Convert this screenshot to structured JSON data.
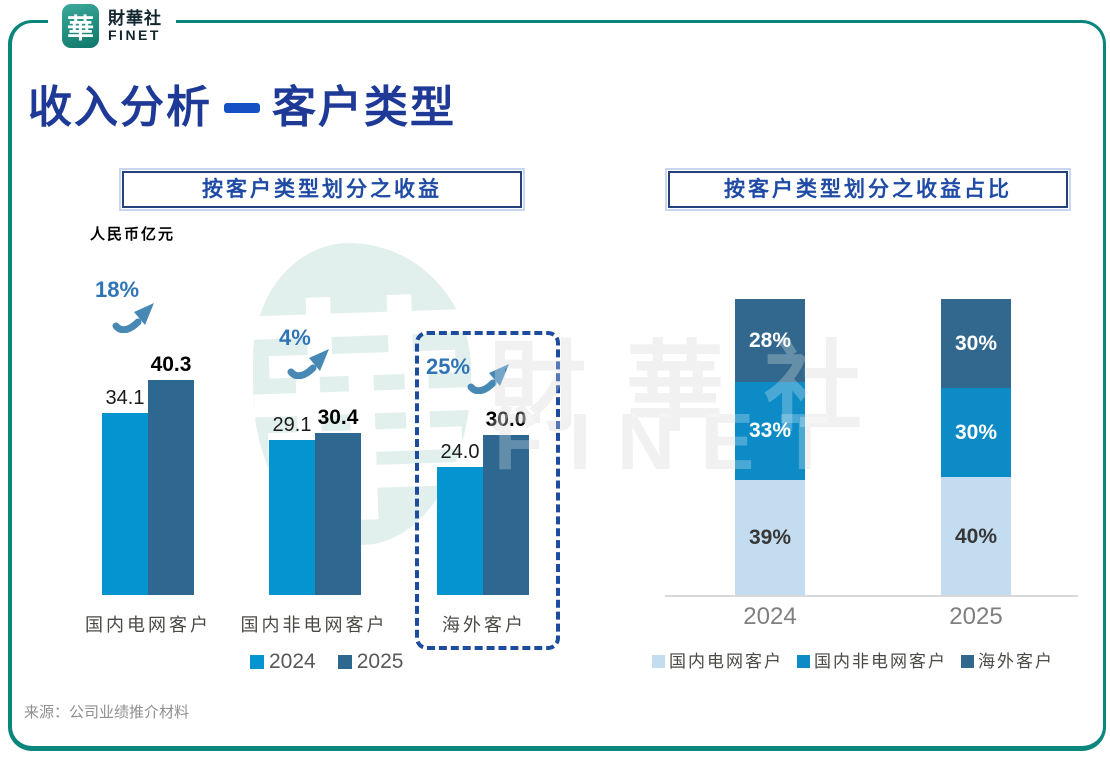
{
  "header": {
    "logo": {
      "seal_glyph": "華",
      "brand_cn": "財華社",
      "brand_en": "FINET"
    },
    "title_main": "收入分析",
    "title_sub": "客户类型"
  },
  "watermark": {
    "seal_glyph": "華",
    "brand_cn": "財華社",
    "brand_en": "FINET"
  },
  "footer": {
    "source": "来源：公司业绩推介材料"
  },
  "accent_colors": {
    "frame_teal": "#0B867D",
    "title_navy": "#1E3A96",
    "dash_blue": "#1550C4",
    "growth_blue": "#2E75B6",
    "box_border_navy": "#24417C",
    "highlight_dashed_blue": "#1D4B9E"
  },
  "chart_data": [
    {
      "type": "bar",
      "title": "按客户类型划分之收益",
      "unit_label": "人民币亿元",
      "categories": [
        "国内电网客户",
        "国内非电网客户",
        "海外客户"
      ],
      "series": [
        {
          "name": "2024",
          "color": "#0495D1",
          "values": [
            34.1,
            29.1,
            24.0
          ]
        },
        {
          "name": "2025",
          "color": "#2E6890",
          "values": [
            40.3,
            30.4,
            30.0
          ]
        }
      ],
      "growth_labels": [
        "18%",
        "4%",
        "25%"
      ],
      "highlighted_category": "海外客户",
      "ylim": [
        0,
        45
      ],
      "grid": false,
      "legend_position": "bottom"
    },
    {
      "type": "stacked-bar",
      "title": "按客户类型划分之收益占比",
      "categories": [
        "2024",
        "2025"
      ],
      "series": [
        {
          "name": "国内电网客户",
          "color": "#C3DCF0",
          "label_color": "#373737",
          "values": [
            39,
            40
          ]
        },
        {
          "name": "国内非电网客户",
          "color": "#0D8BC6",
          "label_color": "#FFFFFF",
          "values": [
            33,
            30
          ]
        },
        {
          "name": "海外客户",
          "color": "#32688D",
          "label_color": "#FFFFFF",
          "values": [
            28,
            30
          ]
        }
      ],
      "value_suffix": "%",
      "ylim": [
        0,
        100
      ],
      "grid": false,
      "legend_position": "bottom"
    }
  ]
}
